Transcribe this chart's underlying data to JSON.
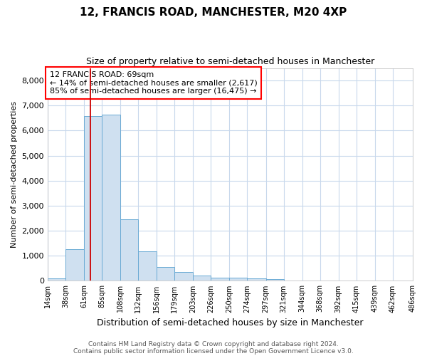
{
  "title_line1": "12, FRANCIS ROAD, MANCHESTER, M20 4XP",
  "title_line2": "Size of property relative to semi-detached houses in Manchester",
  "xlabel": "Distribution of semi-detached houses by size in Manchester",
  "ylabel": "Number of semi-detached properties",
  "footnote1": "Contains HM Land Registry data © Crown copyright and database right 2024.",
  "footnote2": "Contains public sector information licensed under the Open Government Licence v3.0.",
  "annotation_line1": "12 FRANCIS ROAD: 69sqm",
  "annotation_line2": "← 14% of semi-detached houses are smaller (2,617)",
  "annotation_line3": "85% of semi-detached houses are larger (16,475) →",
  "property_size": 69,
  "bar_color": "#cfe0f0",
  "bar_edge_color": "#6aaad4",
  "marker_color": "#cc0000",
  "bin_edges": [
    14,
    37,
    61,
    84,
    108,
    131,
    155,
    178,
    202,
    225,
    249,
    272,
    296,
    319,
    343,
    366,
    390,
    413,
    437,
    460,
    486
  ],
  "bin_labels": [
    "14sqm",
    "38sqm",
    "61sqm",
    "85sqm",
    "108sqm",
    "132sqm",
    "156sqm",
    "179sqm",
    "203sqm",
    "226sqm",
    "250sqm",
    "274sqm",
    "297sqm",
    "321sqm",
    "344sqm",
    "368sqm",
    "392sqm",
    "415sqm",
    "439sqm",
    "462sqm",
    "486sqm"
  ],
  "bar_heights": [
    100,
    1250,
    6580,
    6640,
    2460,
    1190,
    565,
    345,
    215,
    140,
    120,
    90,
    55,
    25,
    15,
    10,
    5,
    3,
    2,
    1
  ],
  "ylim": [
    0,
    8500
  ],
  "yticks": [
    0,
    1000,
    2000,
    3000,
    4000,
    5000,
    6000,
    7000,
    8000
  ],
  "background_color": "#ffffff",
  "grid_color": "#c8d8ec"
}
